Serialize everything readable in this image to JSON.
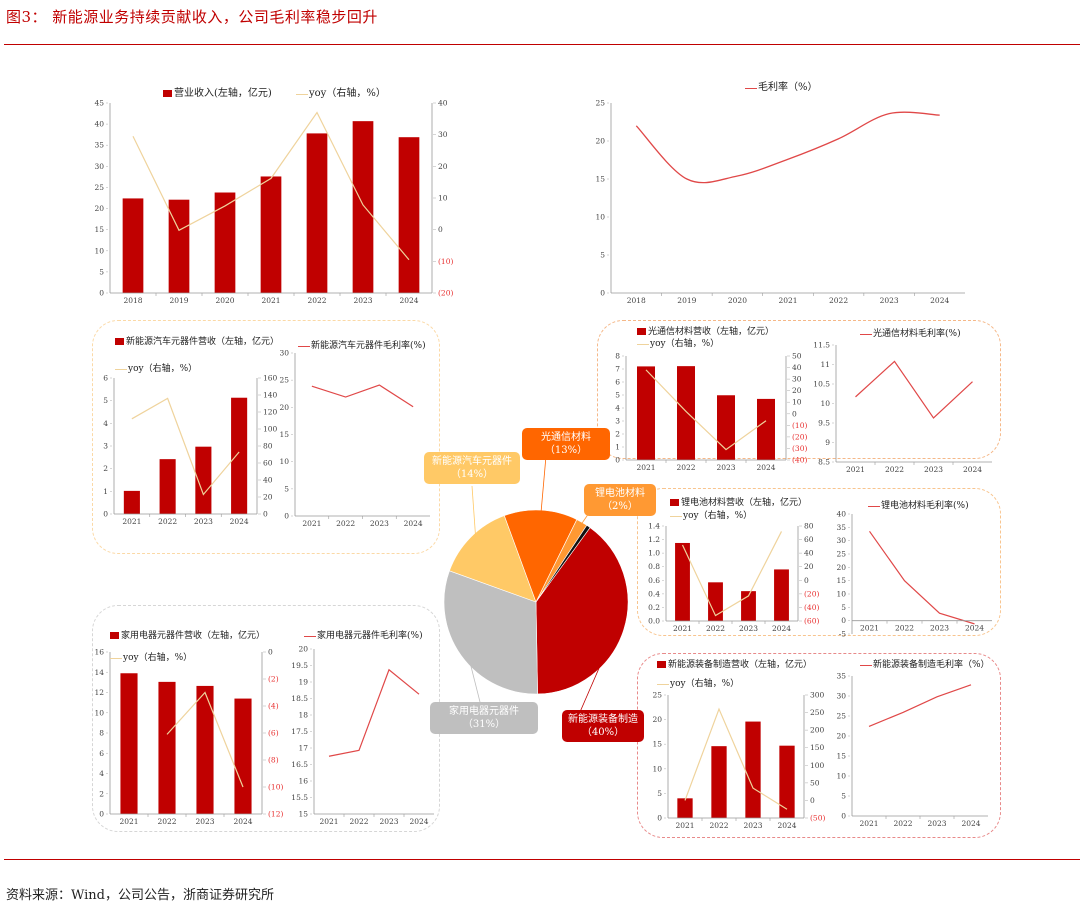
{
  "figure": {
    "title": "图3：  新能源业务持续贡献收入，公司毛利率稳步回升",
    "source": "资料来源：Wind，公司公告，浙商证券研究所"
  },
  "colors": {
    "bar": "#c00000",
    "yoy_line": "#efd39c",
    "margin_line": "#e04848",
    "negative_tick": "#e83030",
    "title": "#c00000"
  },
  "chart_data": [
    {
      "type": "bar+line",
      "categories": [
        "2018",
        "2019",
        "2020",
        "2021",
        "2022",
        "2023",
        "2024"
      ],
      "series": [
        {
          "name": "营业收入(左轴，亿元)",
          "type": "bar",
          "axis": "left",
          "values": [
            22.4,
            22.1,
            23.8,
            27.6,
            37.8,
            40.7,
            36.9
          ]
        },
        {
          "name": "yoy（右轴，%）",
          "type": "line",
          "axis": "right",
          "values": [
            29.5,
            -0.2,
            7.5,
            16.2,
            37.0,
            7.8,
            -9.5
          ]
        }
      ],
      "ylim_left": [
        0,
        45
      ],
      "ylim_right": [
        -20,
        40
      ],
      "yticklabels_left": [
        "0",
        "5",
        "10",
        "15",
        "20",
        "25",
        "30",
        "35",
        "40",
        "45"
      ],
      "yticklabels_right": [
        "(20)",
        "(10)",
        "0",
        "10",
        "20",
        "30",
        "40"
      ],
      "legend": "top"
    },
    {
      "type": "line",
      "categories": [
        "2018",
        "2019",
        "2020",
        "2021",
        "2022",
        "2023",
        "2024"
      ],
      "series": [
        {
          "name": "毛利率（%）",
          "values": [
            22.0,
            15.0,
            15.4,
            17.6,
            20.3,
            23.6,
            23.4
          ]
        }
      ],
      "ylim": [
        0,
        25
      ],
      "yticklabels": [
        "0",
        "5",
        "10",
        "15",
        "20",
        "25"
      ],
      "smooth": true,
      "legend": "top"
    },
    {
      "type": "bar+line",
      "categories": [
        "2021",
        "2022",
        "2023",
        "2024"
      ],
      "series": [
        {
          "name": "新能源汽车元器件营收（左轴，亿元）",
          "type": "bar",
          "axis": "left",
          "values": [
            1.02,
            2.42,
            2.97,
            5.13
          ]
        },
        {
          "name": "yoy（右轴，%）",
          "type": "line",
          "axis": "right",
          "values": [
            112,
            136,
            23,
            73
          ]
        }
      ],
      "ylim_left": [
        0,
        6
      ],
      "ylim_right": [
        0,
        160
      ],
      "yticklabels_left": [
        "0",
        "1",
        "2",
        "3",
        "4",
        "5",
        "6"
      ],
      "yticklabels_right": [
        "0",
        "20",
        "40",
        "60",
        "80",
        "100",
        "120",
        "140",
        "160"
      ],
      "legend": "top-left"
    },
    {
      "type": "line",
      "categories": [
        "2021",
        "2022",
        "2023",
        "2024"
      ],
      "series": [
        {
          "name": "新能源汽车元器件毛利率(%)",
          "values": [
            23.9,
            21.9,
            24.1,
            20.1
          ]
        }
      ],
      "ylim": [
        0,
        30
      ],
      "yticklabels": [
        "0",
        "5",
        "10",
        "15",
        "20",
        "25",
        "30"
      ],
      "legend": "top"
    },
    {
      "type": "bar+line",
      "categories": [
        "2021",
        "2022",
        "2023",
        "2024"
      ],
      "series": [
        {
          "name": "光通信材料营收（左轴，亿元）",
          "type": "bar",
          "axis": "left",
          "values": [
            7.2,
            7.22,
            4.98,
            4.7
          ]
        },
        {
          "name": "yoy（右轴，%）",
          "type": "line",
          "axis": "right",
          "values": [
            38,
            2,
            -31,
            -6
          ]
        }
      ],
      "ylim_left": [
        0,
        8
      ],
      "ylim_right": [
        -40,
        50
      ],
      "yticklabels_left": [
        "0",
        "1",
        "2",
        "3",
        "4",
        "5",
        "6",
        "7",
        "8"
      ],
      "yticklabels_right": [
        "(40)",
        "(30)",
        "(20)",
        "(10)",
        "0",
        "10",
        "20",
        "30",
        "40",
        "50"
      ],
      "legend": "top-left"
    },
    {
      "type": "line",
      "categories": [
        "2021",
        "2022",
        "2023",
        "2024"
      ],
      "series": [
        {
          "name": "光通信材料毛利率(%)",
          "values": [
            10.17,
            11.08,
            9.63,
            10.56
          ]
        }
      ],
      "ylim": [
        8.5,
        11.5
      ],
      "yticklabels": [
        "8.5",
        "9",
        "9.5",
        "10",
        "10.5",
        "11",
        "11.5"
      ],
      "legend": "top"
    },
    {
      "type": "bar+line",
      "categories": [
        "2021",
        "2022",
        "2023",
        "2024"
      ],
      "series": [
        {
          "name": "锂电池材料营收（左轴，亿元）",
          "type": "bar",
          "axis": "left",
          "values": [
            1.15,
            0.57,
            0.44,
            0.76
          ]
        },
        {
          "name": "yoy（右轴，%）",
          "type": "line",
          "axis": "right",
          "values": [
            52,
            -52,
            -23,
            72
          ]
        }
      ],
      "ylim_left": [
        0,
        1.4
      ],
      "ylim_right": [
        -60,
        80
      ],
      "yticklabels_left": [
        "0.0",
        "0.2",
        "0.4",
        "0.6",
        "0.8",
        "1.0",
        "1.2",
        "1.4"
      ],
      "yticklabels_right": [
        "(60)",
        "(40)",
        "(20)",
        "0",
        "20",
        "40",
        "60",
        "80"
      ],
      "legend": "top-left"
    },
    {
      "type": "line",
      "categories": [
        "2021",
        "2022",
        "2023",
        "2024"
      ],
      "series": [
        {
          "name": "锂电池材料毛利率(%)",
          "values": [
            33.5,
            15.0,
            2.8,
            -1.2
          ]
        }
      ],
      "ylim": [
        -5,
        40
      ],
      "yticklabels": [
        "-5",
        "0",
        "5",
        "10",
        "15",
        "20",
        "25",
        "30",
        "35",
        "40"
      ],
      "legend": "top"
    },
    {
      "type": "bar+line",
      "categories": [
        "2021",
        "2022",
        "2023",
        "2024"
      ],
      "series": [
        {
          "name": "新能源装备制造营收（左轴，亿元）",
          "type": "bar",
          "axis": "left",
          "values": [
            4.0,
            14.6,
            19.6,
            14.7
          ]
        },
        {
          "name": "yoy（右轴，%）",
          "type": "line",
          "axis": "right",
          "values": [
            0,
            260,
            35,
            -25
          ]
        }
      ],
      "ylim_left": [
        0,
        25
      ],
      "ylim_right": [
        -50,
        300
      ],
      "yticklabels_left": [
        "0",
        "5",
        "10",
        "15",
        "20",
        "25"
      ],
      "yticklabels_right": [
        "(50)",
        "0",
        "50",
        "100",
        "150",
        "200",
        "250",
        "300"
      ],
      "legend": "top-left"
    },
    {
      "type": "line",
      "categories": [
        "2021",
        "2022",
        "2023",
        "2024"
      ],
      "series": [
        {
          "name": "新能源装备制造毛利率（%）",
          "values": [
            22.4,
            25.9,
            29.8,
            32.8
          ]
        }
      ],
      "ylim": [
        0,
        35
      ],
      "yticklabels": [
        "0",
        "5",
        "10",
        "15",
        "20",
        "25",
        "30",
        "35"
      ],
      "legend": "top"
    },
    {
      "type": "bar+line",
      "categories": [
        "2021",
        "2022",
        "2023",
        "2024"
      ],
      "series": [
        {
          "name": "家用电器元器件营收（左轴，亿元）",
          "type": "bar",
          "axis": "left",
          "values": [
            13.9,
            13.05,
            12.65,
            11.4
          ]
        },
        {
          "name": "yoy（右轴，%）",
          "type": "line",
          "axis": "right",
          "values": [
            null,
            -6.1,
            -3.0,
            -10.0
          ]
        }
      ],
      "ylim_left": [
        0,
        16
      ],
      "ylim_right": [
        -12,
        0
      ],
      "yticklabels_left": [
        "0",
        "2",
        "4",
        "6",
        "8",
        "10",
        "12",
        "14",
        "16"
      ],
      "yticklabels_right": [
        "(12)",
        "(10)",
        "(8)",
        "(6)",
        "(4)",
        "(2)",
        "0"
      ],
      "legend": "top-left"
    },
    {
      "type": "line",
      "categories": [
        "2021",
        "2022",
        "2023",
        "2024"
      ],
      "series": [
        {
          "name": "家用电器元器件毛利率(%)",
          "values": [
            16.75,
            16.93,
            19.37,
            18.63
          ]
        }
      ],
      "ylim": [
        15,
        20
      ],
      "yticklabels": [
        "15",
        "15.5",
        "16",
        "16.5",
        "17",
        "17.5",
        "18",
        "18.5",
        "19",
        "19.5",
        "20"
      ],
      "legend": "top"
    },
    {
      "type": "pie",
      "slices": [
        {
          "label": "新能源装备制造（40%）",
          "value": 40,
          "color": "#c00000"
        },
        {
          "label": "家用电器元器件（31%）",
          "value": 31,
          "color": "#bfbfbf"
        },
        {
          "label": "新能源汽车元器件（14%）",
          "value": 14,
          "color": "#ffc966"
        },
        {
          "label": "光通信材料（13%）",
          "value": 13,
          "color": "#ff6600"
        },
        {
          "label": "锂电池材料（2%）",
          "value": 2,
          "color": "#ff9933"
        },
        {
          "label": "",
          "value": 0.7,
          "color": "#111111"
        }
      ]
    }
  ]
}
